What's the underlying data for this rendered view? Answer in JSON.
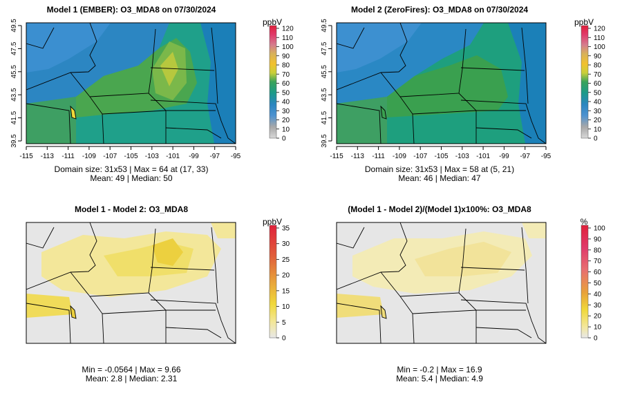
{
  "panels": [
    {
      "title": "Model 1 (EMBER): O3_MDA8 on 07/30/2024",
      "stats_line1": "Domain size: 31x53 | Max = 64 at (17, 33)",
      "stats_line2": "Mean: 49 |  Median: 50",
      "colorbar_unit": "ppbV",
      "colorbar_ticks": [
        "120",
        "110",
        "100",
        "90",
        "80",
        "70",
        "60",
        "50",
        "40",
        "30",
        "20",
        "10",
        "0"
      ],
      "x_ticks": [
        "-115",
        "-113",
        "-111",
        "-109",
        "-107",
        "-105",
        "-103",
        "-101",
        "-99",
        "-97",
        "-95"
      ],
      "y_ticks": [
        "49.5",
        "47.5",
        "45.5",
        "43.5",
        "41.5",
        "39.5"
      ]
    },
    {
      "title": "Model 2 (ZeroFires): O3_MDA8 on 07/30/2024",
      "stats_line1": "Domain size: 31x53 | Max = 58 at (5, 21)",
      "stats_line2": "Mean: 46 |  Median: 47",
      "colorbar_unit": "ppbV",
      "colorbar_ticks": [
        "120",
        "110",
        "100",
        "90",
        "80",
        "70",
        "60",
        "50",
        "40",
        "30",
        "20",
        "10",
        "0"
      ],
      "x_ticks": [
        "-115",
        "-113",
        "-111",
        "-109",
        "-107",
        "-105",
        "-103",
        "-101",
        "-99",
        "-97",
        "-95"
      ],
      "y_ticks": [
        "49.5",
        "47.5",
        "45.5",
        "43.5",
        "41.5",
        "39.5"
      ]
    },
    {
      "title": "Model 1 - Model 2: O3_MDA8",
      "stats_line1": "Min = -0.0564 | Max = 9.66",
      "stats_line2": "Mean: 2.8 |  Median: 2.31",
      "colorbar_unit": "ppbV",
      "colorbar_ticks": [
        "35",
        "30",
        "25",
        "20",
        "15",
        "10",
        "5",
        "0"
      ],
      "x_ticks": [],
      "y_ticks": []
    },
    {
      "title": "(Model 1 - Model 2)/(Model 1)x100%: O3_MDA8",
      "stats_line1": "Min = -0.2 | Max = 16.9",
      "stats_line2": "Mean: 5.4 |  Median: 4.9",
      "colorbar_unit": "%",
      "colorbar_ticks": [
        "100",
        "90",
        "80",
        "70",
        "60",
        "50",
        "40",
        "30",
        "20",
        "10",
        "0"
      ],
      "x_ticks": [],
      "y_ticks": []
    }
  ],
  "colors": {
    "conc_scale": [
      "#d9d9d9",
      "#2e7fc8",
      "#1f9c8c",
      "#3aa35a",
      "#d8cf3a",
      "#f2c12e",
      "#e8a53a",
      "#e87070",
      "#e03a6a",
      "#e0203a"
    ],
    "diff_scale": [
      "#e8e8e8",
      "#f3e79a",
      "#f0d83a",
      "#e8a23a",
      "#e0603a",
      "#e0203a"
    ],
    "pct_scale": [
      "#e8e8e8",
      "#f3e79a",
      "#f0d83a",
      "#e8a23a",
      "#e87070",
      "#e03a6a",
      "#e0203a"
    ]
  },
  "chart_data": [
    {
      "type": "heatmap",
      "title": "Model 1 (EMBER): O3_MDA8 on 07/30/2024",
      "x_range": [
        -115,
        -95
      ],
      "y_range": [
        39.5,
        49.5
      ],
      "grid_size": "31x53",
      "colorbar": {
        "label": "ppbV",
        "range": [
          0,
          120
        ]
      },
      "max": 64,
      "max_at": [
        17,
        33
      ],
      "mean": 49,
      "median": 50
    },
    {
      "type": "heatmap",
      "title": "Model 2 (ZeroFires): O3_MDA8 on 07/30/2024",
      "x_range": [
        -115,
        -95
      ],
      "y_range": [
        39.5,
        49.5
      ],
      "grid_size": "31x53",
      "colorbar": {
        "label": "ppbV",
        "range": [
          0,
          120
        ]
      },
      "max": 58,
      "max_at": [
        5,
        21
      ],
      "mean": 46,
      "median": 47
    },
    {
      "type": "heatmap",
      "title": "Model 1 - Model 2: O3_MDA8",
      "colorbar": {
        "label": "ppbV",
        "range": [
          0,
          35
        ]
      },
      "min": -0.0564,
      "max": 9.66,
      "mean": 2.8,
      "median": 2.31
    },
    {
      "type": "heatmap",
      "title": "(Model 1 - Model 2)/(Model 1)x100%: O3_MDA8",
      "colorbar": {
        "label": "%",
        "range": [
          0,
          100
        ]
      },
      "min": -0.2,
      "max": 16.9,
      "mean": 5.4,
      "median": 4.9
    }
  ]
}
